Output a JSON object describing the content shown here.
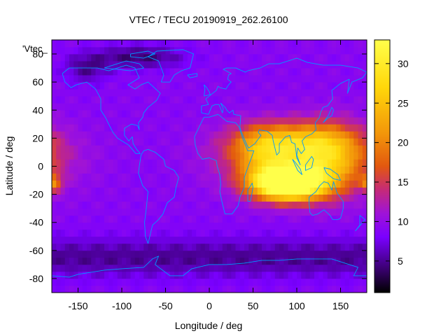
{
  "chart_data": {
    "type": "heatmap",
    "title": "VTEC / TECU 20190919_262.26100",
    "xlabel": "Longitude / deg",
    "ylabel": "Latitude / deg",
    "key_label": "'Vtec_",
    "xlim": [
      -180,
      180
    ],
    "ylim": [
      -90,
      90
    ],
    "xticks": [
      -150,
      -100,
      -50,
      0,
      50,
      100,
      150
    ],
    "yticks": [
      -80,
      -60,
      -40,
      -20,
      0,
      20,
      40,
      60,
      80
    ],
    "colorbar": {
      "range": [
        1,
        33
      ],
      "ticks": [
        5,
        10,
        15,
        20,
        25,
        30
      ],
      "palette": [
        "#000000",
        "#3a0070",
        "#7a00ff",
        "#9f13d8",
        "#c52a78",
        "#e2580f",
        "#f2940a",
        "#ffd70a",
        "#ffff4a"
      ],
      "palette_stops": [
        1,
        4,
        8,
        11,
        14,
        17,
        21,
        27,
        33
      ]
    },
    "grid": false,
    "coastline_color": "#0099ff",
    "values_description": "VTEC in TECU on a lon/lat grid",
    "anomalies": [
      {
        "lon": 90,
        "lat": -12,
        "vtec": 33,
        "sigma_lon": 28,
        "sigma_lat": 8
      },
      {
        "lon": 105,
        "lat": 5,
        "vtec": 12,
        "sigma_lon": 55,
        "sigma_lat": 15
      },
      {
        "lon": 95,
        "lat": 18,
        "vtec": 9,
        "sigma_lon": 45,
        "sigma_lat": 9
      },
      {
        "lon": 60,
        "lat": 10,
        "vtec": 6,
        "sigma_lon": 22,
        "sigma_lat": 12
      },
      {
        "lon": 140,
        "lat": 5,
        "vtec": 7,
        "sigma_lon": 25,
        "sigma_lat": 18
      },
      {
        "lon": -178,
        "lat": -12,
        "vtec": 9,
        "sigma_lon": 6,
        "sigma_lat": 4
      }
    ],
    "background": {
      "base": 9,
      "low_polar_south": -4,
      "low_polar_north": -5,
      "low_nw": -4
    }
  }
}
